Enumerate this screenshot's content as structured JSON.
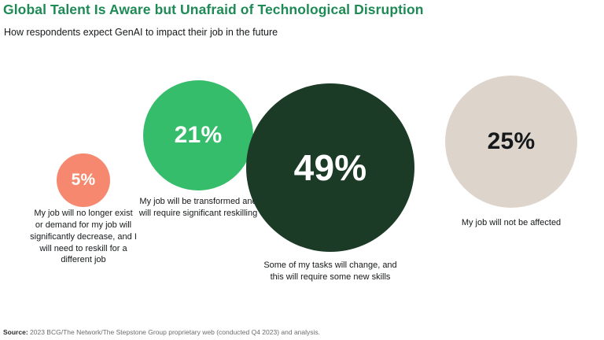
{
  "title": "Global Talent Is Aware but Unafraid of Technological Disruption",
  "subtitle": "How respondents expect GenAI to impact their job in the future",
  "source": {
    "label": "Source:",
    "text": " 2023 BCG/The Network/The Stepstone Group proprietary web (conducted Q4 2023) and analysis."
  },
  "colors": {
    "title_green": "#1E8A55",
    "bubble_salmon": "#F5886E",
    "bubble_green": "#35BD6B",
    "bubble_dark_green": "#1B3B27",
    "bubble_beige": "#DDD5CB",
    "text_dark": "#15181a",
    "text_white": "#FFFFFF"
  },
  "chart_data": {
    "type": "bubble",
    "title": "Global Talent Is Aware but Unafraid of Technological Disruption",
    "subtitle": "How respondents expect GenAI to impact their job in the future",
    "unit": "percent of respondents",
    "series": [
      {
        "value": 5,
        "value_label": "5%",
        "label": "My job will no longer exist or demand for my job will significantly decrease, and I will need to reskill for a different job",
        "color": "#F5886E",
        "text_color": "#FFFFFF"
      },
      {
        "value": 21,
        "value_label": "21%",
        "label": "My job will be transformed and will require significant reskilling",
        "color": "#35BD6B",
        "text_color": "#FFFFFF"
      },
      {
        "value": 49,
        "value_label": "49%",
        "label": "Some of my tasks will change, and this will require some new skills",
        "color": "#1B3B27",
        "text_color": "#FFFFFF"
      },
      {
        "value": 25,
        "value_label": "25%",
        "label": "My job will not be affected",
        "color": "#DDD5CB",
        "text_color": "#15181a"
      }
    ]
  }
}
